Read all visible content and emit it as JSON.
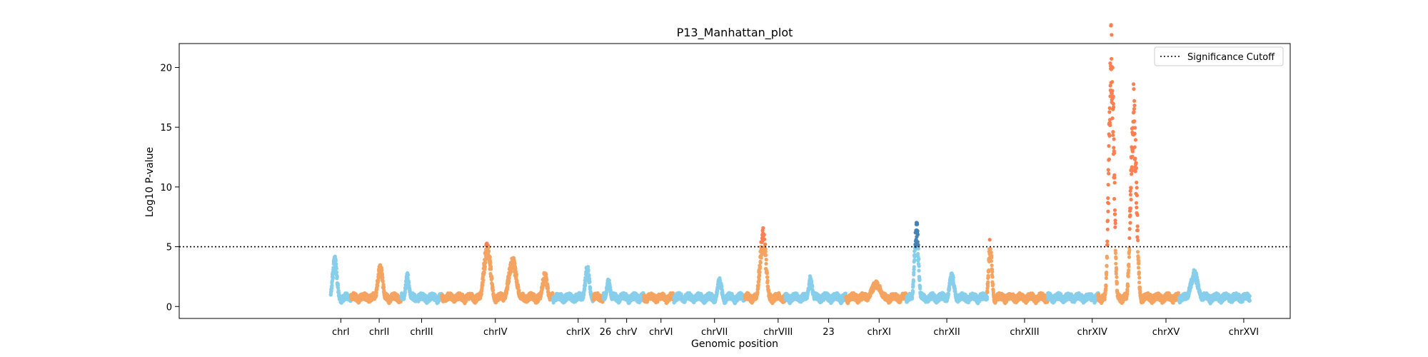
{
  "chart_data": {
    "type": "scatter",
    "title": "P13_Manhattan_plot",
    "xlabel": "Genomic position",
    "ylabel": "Log10 P-value",
    "ylim": [
      -1,
      22
    ],
    "yticks": [
      0,
      5,
      10,
      15,
      20
    ],
    "significance_cutoff": 5,
    "legend": {
      "label": "Significance Cutoff",
      "placement": "top-right"
    },
    "colors": {
      "light_blue": "#87ceeb",
      "sandy_orange": "#f4a460",
      "sig_orange": "#ff7f50",
      "sig_blue": "#4682b4",
      "cutoff_line": "#000000"
    },
    "xlim": [
      -12,
      98
    ],
    "chromosomes": [
      {
        "label": "chrI",
        "start": 3,
        "end": 5,
        "color": "light_blue",
        "peaks": [
          {
            "pos": 3.4,
            "height": 3.6,
            "width": 0.35,
            "sig_color": "sig_orange"
          }
        ]
      },
      {
        "label": "chrII",
        "start": 5,
        "end": 10,
        "color": "sandy_orange",
        "peaks": [
          {
            "pos": 7.9,
            "height": 3.1,
            "width": 0.4,
            "sig_color": "sig_orange"
          }
        ]
      },
      {
        "label": "chrIII",
        "start": 10,
        "end": 14,
        "color": "light_blue",
        "peaks": [
          {
            "pos": 10.6,
            "height": 2.4,
            "width": 0.3,
            "sig_color": "sig_orange"
          }
        ]
      },
      {
        "label": "chrIV",
        "start": 14,
        "end": 25,
        "color": "sandy_orange",
        "peaks": [
          {
            "pos": 18.5,
            "height": 4.8,
            "width": 0.5,
            "sig_color": "sig_orange"
          },
          {
            "pos": 21,
            "height": 3.6,
            "width": 0.6,
            "sig_color": "sig_orange"
          },
          {
            "pos": 24.2,
            "height": 2.5,
            "width": 0.4,
            "sig_color": "sig_orange"
          }
        ]
      },
      {
        "label": "chrIX",
        "start": 25,
        "end": 29,
        "color": "light_blue",
        "peaks": [
          {
            "pos": 28.4,
            "height": 3.0,
            "width": 0.35,
            "sig_color": "sig_orange"
          }
        ]
      },
      {
        "label": "26",
        "start": 29,
        "end": 30,
        "color": "sandy_orange",
        "peaks": []
      },
      {
        "label": "chrV",
        "start": 30,
        "end": 34,
        "color": "light_blue",
        "peaks": [
          {
            "pos": 30.5,
            "height": 2.0,
            "width": 0.3,
            "sig_color": "sig_orange"
          }
        ]
      },
      {
        "label": "chrVI",
        "start": 34,
        "end": 37,
        "color": "sandy_orange",
        "peaks": []
      },
      {
        "label": "chrVII",
        "start": 37,
        "end": 44,
        "color": "light_blue",
        "peaks": [
          {
            "pos": 41.5,
            "height": 2.1,
            "width": 0.35,
            "sig_color": "sig_orange"
          }
        ]
      },
      {
        "label": "chrVIII",
        "start": 44,
        "end": 48,
        "color": "sandy_orange",
        "peaks": [
          {
            "pos": 45.8,
            "height": 5.6,
            "width": 0.45,
            "sig_color": "sig_orange"
          }
        ]
      },
      {
        "label": "23",
        "start": 48,
        "end": 54,
        "color": "light_blue",
        "peaks": [
          {
            "pos": 50.5,
            "height": 2.2,
            "width": 0.3,
            "sig_color": "sig_orange"
          }
        ]
      },
      {
        "label": "chrXI",
        "start": 54,
        "end": 60,
        "color": "sandy_orange",
        "peaks": [
          {
            "pos": 57,
            "height": 1.8,
            "width": 0.8,
            "sig_color": "sig_orange"
          }
        ]
      },
      {
        "label": "chrXII",
        "start": 60,
        "end": 68,
        "color": "light_blue",
        "peaks": [
          {
            "pos": 61,
            "height": 6.2,
            "width": 0.3,
            "sig_color": "sig_blue"
          },
          {
            "pos": 64.5,
            "height": 2.4,
            "width": 0.4,
            "sig_color": "sig_orange"
          }
        ]
      },
      {
        "label": "chrXIII",
        "start": 68,
        "end": 74,
        "color": "sandy_orange",
        "peaks": [
          {
            "pos": 68.3,
            "height": 5.0,
            "width": 0.25,
            "sig_color": "sig_orange"
          }
        ]
      },
      {
        "label": "chrXIV",
        "start": 74,
        "end": 79,
        "color": "light_blue",
        "peaks": []
      },
      {
        "label": "chrXV",
        "start": 79,
        "end": 87,
        "color": "sandy_orange",
        "peaks": [
          {
            "pos": 80.3,
            "height": 20.7,
            "width": 0.35,
            "sig_color": "sig_orange"
          },
          {
            "pos": 82.5,
            "height": 15.8,
            "width": 0.4,
            "sig_color": "sig_orange"
          }
        ]
      },
      {
        "label": "chrXVI",
        "start": 87,
        "end": 94,
        "color": "light_blue",
        "peaks": [
          {
            "pos": 88.5,
            "height": 2.6,
            "width": 0.6,
            "sig_color": "sig_orange"
          }
        ]
      }
    ],
    "xtick_labels": [
      {
        "label": "chrI",
        "pos": 4
      },
      {
        "label": "chrII",
        "pos": 7.8
      },
      {
        "label": "chrIII",
        "pos": 12
      },
      {
        "label": "chrIV",
        "pos": 19.3
      },
      {
        "label": "chrIX",
        "pos": 27.5
      },
      {
        "label": "26",
        "pos": 30.2
      },
      {
        "label": "chrV",
        "pos": 32.3
      },
      {
        "label": "chrVI",
        "pos": 35.7
      },
      {
        "label": "chrVII",
        "pos": 41
      },
      {
        "label": "chrVIII",
        "pos": 47.3
      },
      {
        "label": "23",
        "pos": 52.3
      },
      {
        "label": "chrXI",
        "pos": 57.3
      },
      {
        "label": "chrXII",
        "pos": 64
      },
      {
        "label": "chrXIII",
        "pos": 71.7
      },
      {
        "label": "chrXIV",
        "pos": 78.4
      },
      {
        "label": "chrXV",
        "pos": 85.7
      },
      {
        "label": "chrXVI",
        "pos": 93.4
      }
    ]
  }
}
